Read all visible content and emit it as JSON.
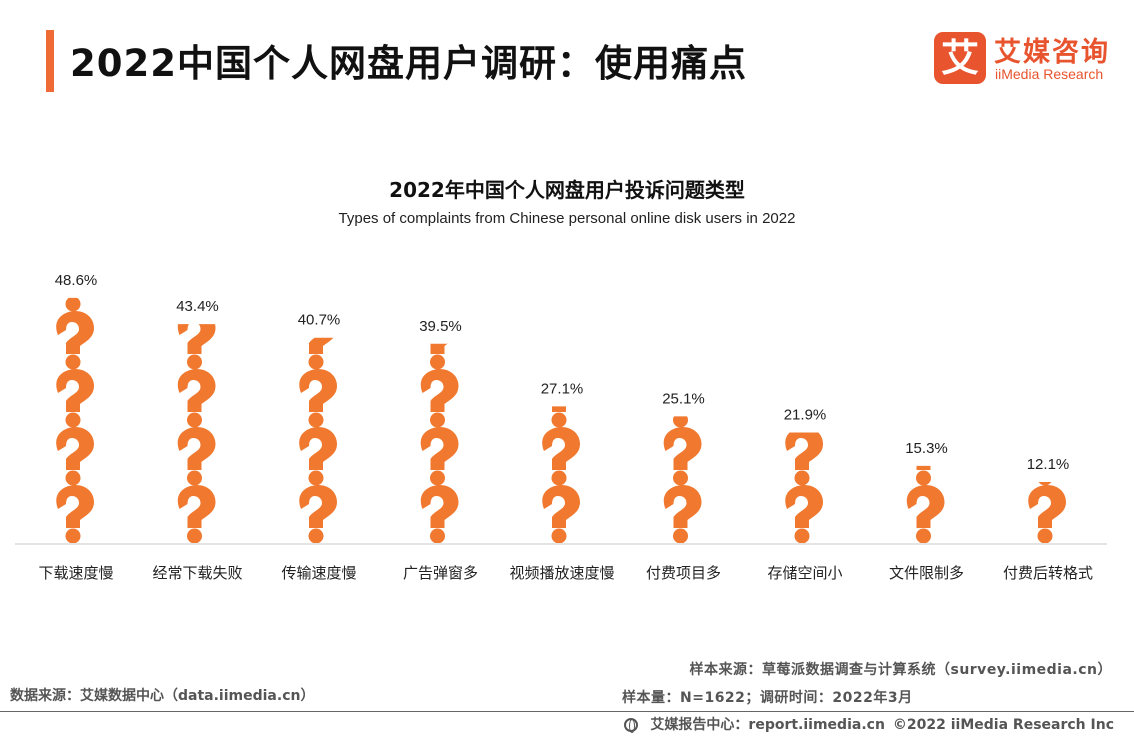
{
  "header": {
    "title": "2022中国个人网盘用户调研：使用痛点",
    "logo_cn": "艾媒咨询",
    "logo_en": "iiMedia Research",
    "logo_mark": "艾"
  },
  "colors": {
    "accent": "#f06a35",
    "icon": "#f0782f",
    "logo": "#e8542e"
  },
  "chart_data": {
    "type": "bar",
    "title": "2022年中国个人网盘用户投诉问题类型",
    "subtitle": "Types of complaints from Chinese personal online disk users in 2022",
    "categories": [
      "下载速度慢",
      "经常下载失败",
      "传输速度慢",
      "广告弹窗多",
      "视频播放速度慢",
      "付费项目多",
      "存储空间小",
      "文件限制多",
      "付费后转格式"
    ],
    "values": [
      48.6,
      43.4,
      40.7,
      39.5,
      27.1,
      25.1,
      21.9,
      15.3,
      12.1
    ],
    "value_labels": [
      "48.6%",
      "43.4%",
      "40.7%",
      "39.5%",
      "27.1%",
      "25.1%",
      "21.9%",
      "15.3%",
      "12.1%"
    ],
    "unit": "%",
    "mark_icon": "question-mark-icon",
    "icon_value_step": 11.5,
    "ylim": [
      0,
      48.6
    ]
  },
  "source": {
    "data_source": "数据来源：艾媒数据中心（data.iimedia.cn）",
    "sample_source": "样本来源：草莓派数据调查与计算系统（survey.iimedia.cn）",
    "sample_size": "样本量：N=1622；调研时间：2022年3月"
  },
  "footer": {
    "center": "艾媒报告中心：report.iimedia.cn",
    "copyright": "©2022 iiMedia Research Inc"
  }
}
